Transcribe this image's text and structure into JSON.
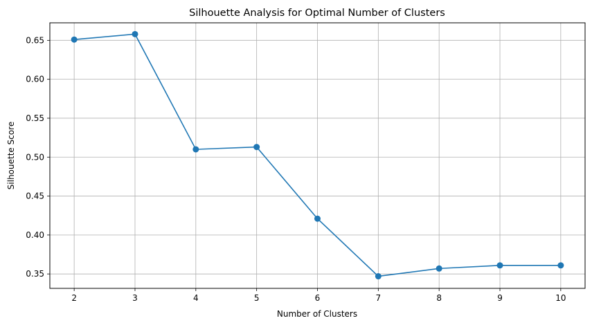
{
  "chart_data": {
    "type": "line",
    "title": "Silhouette Analysis for Optimal Number of Clusters",
    "xlabel": "Number of Clusters",
    "ylabel": "Silhouette Score",
    "x": [
      2,
      3,
      4,
      5,
      6,
      7,
      8,
      9,
      10
    ],
    "series": [
      {
        "values": [
          0.651,
          0.658,
          0.51,
          0.513,
          0.421,
          0.347,
          0.357,
          0.361,
          0.361
        ],
        "color": "#1f77b4",
        "marker": "circle"
      }
    ],
    "xlim": [
      1.6,
      10.4
    ],
    "ylim": [
      0.3315,
      0.6725
    ],
    "xticks": [
      2,
      3,
      4,
      5,
      6,
      7,
      8,
      9,
      10
    ],
    "yticks": [
      "0.35",
      "0.40",
      "0.45",
      "0.50",
      "0.55",
      "0.60",
      "0.65"
    ],
    "grid": true,
    "grid_color": "#b0b0b0"
  }
}
